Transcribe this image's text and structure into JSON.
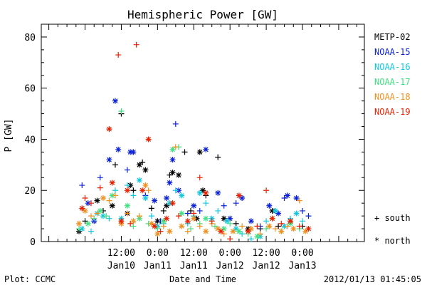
{
  "chart_data": {
    "type": "scatter",
    "title": "Hemispheric Power [GW]",
    "ylabel": "P [GW]",
    "xlabel": "Date and Time",
    "ylim": [
      0,
      85
    ],
    "yticks": [
      0,
      20,
      40,
      60,
      80
    ],
    "xrange_hours": [
      -14.5,
      92.5
    ],
    "xticks": [
      {
        "t": 12,
        "time": "12:00",
        "date": "Jan10"
      },
      {
        "t": 24,
        "time": "0:00",
        "date": "Jan11"
      },
      {
        "t": 36,
        "time": "12:00",
        "date": "Jan11"
      },
      {
        "t": 48,
        "time": "0:00",
        "date": "Jan12"
      },
      {
        "t": 60,
        "time": "12:00",
        "date": "Jan12"
      },
      {
        "t": 72,
        "time": "0:00",
        "date": "Jan13"
      }
    ],
    "x_units_note": "x in hours from Jan10 0:00",
    "marker_legend": {
      "south": "+ south",
      "north": "* north"
    },
    "series": [
      {
        "name": "METP-02",
        "color": "#000000",
        "points": [
          [
            -2,
            4,
            "n"
          ],
          [
            0,
            8,
            "s"
          ],
          [
            4,
            16,
            "n"
          ],
          [
            6,
            12,
            "s"
          ],
          [
            9,
            14,
            "n"
          ],
          [
            10,
            30,
            "s"
          ],
          [
            12,
            50,
            "s"
          ],
          [
            14,
            11,
            "n"
          ],
          [
            15,
            22,
            "n"
          ],
          [
            16,
            20,
            "s"
          ],
          [
            18,
            30,
            "n"
          ],
          [
            19,
            31,
            "s"
          ],
          [
            20,
            28,
            "n"
          ],
          [
            22,
            13,
            "s"
          ],
          [
            24,
            8,
            "n"
          ],
          [
            26,
            12,
            "s"
          ],
          [
            27,
            14,
            "n"
          ],
          [
            28,
            26,
            "s"
          ],
          [
            29,
            27,
            "n"
          ],
          [
            31,
            26,
            "n"
          ],
          [
            33,
            35,
            "s"
          ],
          [
            35,
            12,
            "s"
          ],
          [
            37,
            9,
            "n"
          ],
          [
            38,
            35,
            "n"
          ],
          [
            39,
            20,
            "n"
          ],
          [
            40,
            18,
            "s"
          ],
          [
            44,
            33,
            "s"
          ],
          [
            46,
            9,
            "n"
          ],
          [
            50,
            7,
            "s"
          ],
          [
            54,
            5,
            "n"
          ],
          [
            58,
            5,
            "s"
          ],
          [
            62,
            12,
            "n"
          ],
          [
            64,
            6,
            "s"
          ],
          [
            68,
            8,
            "n"
          ],
          [
            72,
            6,
            "s"
          ]
        ]
      },
      {
        "name": "NOAA-15",
        "color": "#0a20d8",
        "points": [
          [
            -1,
            22,
            "s"
          ],
          [
            1,
            15,
            "n"
          ],
          [
            3,
            8,
            "n"
          ],
          [
            5,
            25,
            "s"
          ],
          [
            8,
            32,
            "n"
          ],
          [
            10,
            55,
            "n"
          ],
          [
            11,
            36,
            "n"
          ],
          [
            14,
            28,
            "s"
          ],
          [
            15,
            35,
            "n"
          ],
          [
            16,
            35,
            "n"
          ],
          [
            20,
            18,
            "s"
          ],
          [
            23,
            16,
            "n"
          ],
          [
            25,
            8,
            "s"
          ],
          [
            27,
            17,
            "n"
          ],
          [
            28,
            23,
            "n"
          ],
          [
            29,
            32,
            "n"
          ],
          [
            30,
            46,
            "s"
          ],
          [
            31,
            20,
            "n"
          ],
          [
            34,
            11,
            "s"
          ],
          [
            36,
            14,
            "n"
          ],
          [
            38,
            12,
            "s"
          ],
          [
            40,
            36,
            "n"
          ],
          [
            44,
            19,
            "n"
          ],
          [
            46,
            14,
            "s"
          ],
          [
            48,
            9,
            "n"
          ],
          [
            50,
            15,
            "s"
          ],
          [
            52,
            17,
            "n"
          ],
          [
            55,
            8,
            "n"
          ],
          [
            58,
            6,
            "s"
          ],
          [
            61,
            14,
            "n"
          ],
          [
            63,
            12,
            "s"
          ],
          [
            64,
            11,
            "n"
          ],
          [
            66,
            17,
            "s"
          ],
          [
            67,
            18,
            "n"
          ],
          [
            70,
            17,
            "n"
          ],
          [
            72,
            12,
            "s"
          ],
          [
            74,
            10,
            "s"
          ]
        ]
      },
      {
        "name": "NOAA-16",
        "color": "#10c8e0",
        "points": [
          [
            -1,
            5,
            "n"
          ],
          [
            2,
            4,
            "s"
          ],
          [
            4,
            11,
            "n"
          ],
          [
            6,
            10,
            "n"
          ],
          [
            8,
            9,
            "s"
          ],
          [
            10,
            20,
            "s"
          ],
          [
            12,
            9,
            "n"
          ],
          [
            14,
            22,
            "s"
          ],
          [
            16,
            18,
            "s"
          ],
          [
            18,
            24,
            "n"
          ],
          [
            20,
            17,
            "n"
          ],
          [
            22,
            10,
            "s"
          ],
          [
            24,
            6,
            "n"
          ],
          [
            26,
            7,
            "s"
          ],
          [
            28,
            15,
            "n"
          ],
          [
            30,
            20,
            "s"
          ],
          [
            32,
            18,
            "n"
          ],
          [
            34,
            7,
            "s"
          ],
          [
            36,
            10,
            "s"
          ],
          [
            38,
            19,
            "n"
          ],
          [
            40,
            15,
            "s"
          ],
          [
            42,
            9,
            "n"
          ],
          [
            44,
            12,
            "s"
          ],
          [
            47,
            8,
            "n"
          ],
          [
            50,
            5,
            "n"
          ],
          [
            52,
            3,
            "s"
          ],
          [
            55,
            1,
            "s"
          ],
          [
            58,
            2,
            "n"
          ],
          [
            60,
            8,
            "s"
          ],
          [
            63,
            12,
            "n"
          ],
          [
            66,
            6,
            "n"
          ],
          [
            68,
            9,
            "s"
          ],
          [
            70,
            11,
            "n"
          ],
          [
            72,
            8,
            "s"
          ]
        ]
      },
      {
        "name": "NOAA-17",
        "color": "#40e080",
        "points": [
          [
            -2,
            5,
            "s"
          ],
          [
            1,
            7,
            "n"
          ],
          [
            3,
            9,
            "s"
          ],
          [
            5,
            12,
            "n"
          ],
          [
            7,
            10,
            "s"
          ],
          [
            9,
            18,
            "n"
          ],
          [
            12,
            51,
            "s"
          ],
          [
            14,
            14,
            "n"
          ],
          [
            16,
            6,
            "s"
          ],
          [
            18,
            9,
            "n"
          ],
          [
            21,
            7,
            "s"
          ],
          [
            24,
            5,
            "s"
          ],
          [
            26,
            8,
            "n"
          ],
          [
            29,
            36,
            "n"
          ],
          [
            31,
            37,
            "s"
          ],
          [
            32,
            11,
            "n"
          ],
          [
            35,
            5,
            "s"
          ],
          [
            38,
            7,
            "s"
          ],
          [
            40,
            9,
            "n"
          ],
          [
            43,
            6,
            "s"
          ],
          [
            46,
            5,
            "n"
          ],
          [
            48,
            7,
            "s"
          ],
          [
            51,
            4,
            "n"
          ],
          [
            54,
            3,
            "s"
          ],
          [
            57,
            2,
            "n"
          ],
          [
            60,
            5,
            "s"
          ],
          [
            62,
            9,
            "n"
          ],
          [
            65,
            4,
            "s"
          ],
          [
            68,
            7,
            "n"
          ],
          [
            71,
            5,
            "s"
          ]
        ]
      },
      {
        "name": "NOAA-18",
        "color": "#f09020",
        "points": [
          [
            -2,
            7,
            "n"
          ],
          [
            0,
            12,
            "n"
          ],
          [
            2,
            10,
            "s"
          ],
          [
            4,
            11,
            "s"
          ],
          [
            6,
            17,
            "n"
          ],
          [
            8,
            16,
            "s"
          ],
          [
            10,
            18,
            "s"
          ],
          [
            12,
            7,
            "n"
          ],
          [
            14,
            11,
            "s"
          ],
          [
            16,
            8,
            "n"
          ],
          [
            18,
            10,
            "s"
          ],
          [
            20,
            22,
            "n"
          ],
          [
            21,
            20,
            "s"
          ],
          [
            22,
            7,
            "n"
          ],
          [
            24,
            3,
            "n"
          ],
          [
            26,
            6,
            "s"
          ],
          [
            28,
            4,
            "n"
          ],
          [
            30,
            37,
            "s"
          ],
          [
            32,
            6,
            "n"
          ],
          [
            34,
            4,
            "s"
          ],
          [
            36,
            9,
            "n"
          ],
          [
            38,
            6,
            "s"
          ],
          [
            40,
            4,
            "n"
          ],
          [
            42,
            7,
            "s"
          ],
          [
            44,
            5,
            "n"
          ],
          [
            46,
            3,
            "s"
          ],
          [
            49,
            4,
            "n"
          ],
          [
            52,
            6,
            "s"
          ],
          [
            55,
            5,
            "n"
          ],
          [
            58,
            3,
            "s"
          ],
          [
            61,
            6,
            "n"
          ],
          [
            63,
            5,
            "s"
          ],
          [
            65,
            4,
            "n"
          ],
          [
            67,
            6,
            "s"
          ],
          [
            69,
            5,
            "n"
          ],
          [
            71,
            16,
            "s"
          ],
          [
            73,
            4,
            "n"
          ]
        ]
      },
      {
        "name": "NOAA-19",
        "color": "#e82000",
        "points": [
          [
            -1,
            13,
            "n"
          ],
          [
            0,
            17,
            "s"
          ],
          [
            2,
            15,
            "s"
          ],
          [
            5,
            21,
            "s"
          ],
          [
            8,
            44,
            "n"
          ],
          [
            9,
            23,
            "n"
          ],
          [
            11,
            73,
            "s"
          ],
          [
            12,
            8,
            "n"
          ],
          [
            14,
            20,
            "n"
          ],
          [
            15,
            7,
            "s"
          ],
          [
            17,
            77,
            "s"
          ],
          [
            19,
            20,
            "n"
          ],
          [
            21,
            40,
            "n"
          ],
          [
            23,
            6,
            "n"
          ],
          [
            25,
            4,
            "s"
          ],
          [
            27,
            9,
            "n"
          ],
          [
            29,
            15,
            "n"
          ],
          [
            31,
            10,
            "s"
          ],
          [
            34,
            8,
            "n"
          ],
          [
            36,
            11,
            "s"
          ],
          [
            38,
            25,
            "s"
          ],
          [
            40,
            19,
            "n"
          ],
          [
            42,
            8,
            "s"
          ],
          [
            45,
            4,
            "n"
          ],
          [
            48,
            1,
            "s"
          ],
          [
            51,
            18,
            "n"
          ],
          [
            54,
            4,
            "n"
          ],
          [
            57,
            6,
            "s"
          ],
          [
            60,
            20,
            "s"
          ],
          [
            62,
            9,
            "n"
          ],
          [
            65,
            7,
            "s"
          ],
          [
            68,
            8,
            "n"
          ],
          [
            71,
            6,
            "s"
          ],
          [
            74,
            5,
            "n"
          ]
        ]
      }
    ]
  },
  "footer": {
    "left": "Plot: CCMC",
    "center": "Date and Time",
    "right": "2012/01/13 01:45:05"
  }
}
